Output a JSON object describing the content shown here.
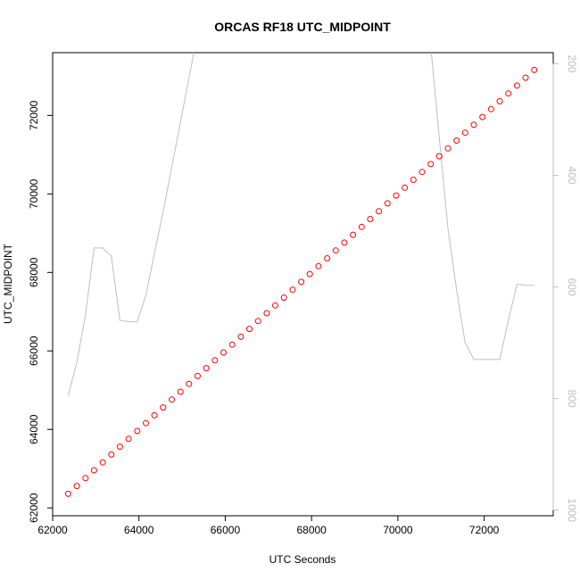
{
  "chart_data": {
    "type": "scatter",
    "title": "ORCAS RF18 UTC_MIDPOINT",
    "xlabel": "UTC Seconds",
    "ylabel": "UTC_MIDPOINT",
    "xlim": [
      62000,
      73600
    ],
    "ylim": [
      61800,
      73600
    ],
    "x_ticks": [
      "62000",
      "64000",
      "66000",
      "68000",
      "70000",
      "72000"
    ],
    "y_ticks": [
      "62000",
      "64000",
      "66000",
      "68000",
      "70000",
      "72000"
    ],
    "colors": {
      "points": "#ff0000",
      "overlay_line": "#bebebe",
      "axis": "#000000",
      "right_axis": "#bebebe"
    },
    "series": [
      {
        "values": [
          [
            62360,
            62360
          ],
          [
            62560,
            62560
          ],
          [
            62760,
            62760
          ],
          [
            62960,
            62960
          ],
          [
            63160,
            63160
          ],
          [
            63360,
            63360
          ],
          [
            63560,
            63560
          ],
          [
            63760,
            63760
          ],
          [
            63960,
            63960
          ],
          [
            64160,
            64160
          ],
          [
            64360,
            64360
          ],
          [
            64560,
            64560
          ],
          [
            64760,
            64760
          ],
          [
            64960,
            64960
          ],
          [
            65160,
            65160
          ],
          [
            65360,
            65360
          ],
          [
            65560,
            65560
          ],
          [
            65760,
            65760
          ],
          [
            65960,
            65960
          ],
          [
            66160,
            66160
          ],
          [
            66360,
            66360
          ],
          [
            66560,
            66560
          ],
          [
            66760,
            66760
          ],
          [
            66960,
            66960
          ],
          [
            67160,
            67160
          ],
          [
            67360,
            67360
          ],
          [
            67560,
            67560
          ],
          [
            67760,
            67760
          ],
          [
            67960,
            67960
          ],
          [
            68160,
            68160
          ],
          [
            68360,
            68360
          ],
          [
            68560,
            68560
          ],
          [
            68760,
            68760
          ],
          [
            68960,
            68960
          ],
          [
            69160,
            69160
          ],
          [
            69360,
            69360
          ],
          [
            69560,
            69560
          ],
          [
            69760,
            69760
          ],
          [
            69960,
            69960
          ],
          [
            70160,
            70160
          ],
          [
            70360,
            70360
          ],
          [
            70560,
            70560
          ],
          [
            70760,
            70760
          ],
          [
            70960,
            70960
          ],
          [
            71160,
            71160
          ],
          [
            71360,
            71360
          ],
          [
            71560,
            71560
          ],
          [
            71760,
            71760
          ],
          [
            71960,
            71960
          ],
          [
            72160,
            72160
          ],
          [
            72360,
            72360
          ],
          [
            72560,
            72560
          ],
          [
            72760,
            72760
          ],
          [
            72960,
            72960
          ],
          [
            73160,
            73160
          ]
        ]
      }
    ],
    "secondary": {
      "type": "line",
      "ylim": [
        1010,
        180
      ],
      "y_ticks": [
        "200",
        "400",
        "600",
        "800",
        "1000"
      ],
      "values": [
        [
          62360,
          795
        ],
        [
          62560,
          735
        ],
        [
          62760,
          650
        ],
        [
          62960,
          530
        ],
        [
          63160,
          530
        ],
        [
          63360,
          545
        ],
        [
          63560,
          660
        ],
        [
          63760,
          662
        ],
        [
          63960,
          662
        ],
        [
          64160,
          615
        ],
        [
          64360,
          540
        ],
        [
          64560,
          465
        ],
        [
          64760,
          385
        ],
        [
          64960,
          305
        ],
        [
          65160,
          225
        ],
        [
          65360,
          145
        ],
        [
          65560,
          65
        ],
        [
          65760,
          -15
        ],
        [
          65960,
          -95
        ],
        [
          66160,
          -175
        ],
        [
          66360,
          -255
        ],
        [
          66560,
          178
        ],
        [
          66760,
          178
        ],
        [
          66960,
          168
        ],
        [
          67160,
          168
        ],
        [
          67360,
          168
        ],
        [
          67560,
          168
        ],
        [
          67760,
          168
        ],
        [
          67960,
          168
        ],
        [
          68160,
          168
        ],
        [
          68360,
          168
        ],
        [
          68560,
          168
        ],
        [
          68760,
          168
        ],
        [
          68960,
          168
        ],
        [
          69160,
          168
        ],
        [
          69360,
          168
        ],
        [
          69560,
          168
        ],
        [
          69760,
          168
        ],
        [
          69960,
          168
        ],
        [
          70160,
          168
        ],
        [
          70360,
          168
        ],
        [
          70560,
          168
        ],
        [
          70760,
          168
        ],
        [
          70960,
          332
        ],
        [
          71160,
          495
        ],
        [
          71360,
          605
        ],
        [
          71560,
          700
        ],
        [
          71760,
          730
        ],
        [
          71960,
          730
        ],
        [
          72160,
          730
        ],
        [
          72360,
          730
        ],
        [
          72560,
          660
        ],
        [
          72760,
          595
        ],
        [
          72960,
          597
        ],
        [
          73160,
          597
        ]
      ]
    }
  }
}
